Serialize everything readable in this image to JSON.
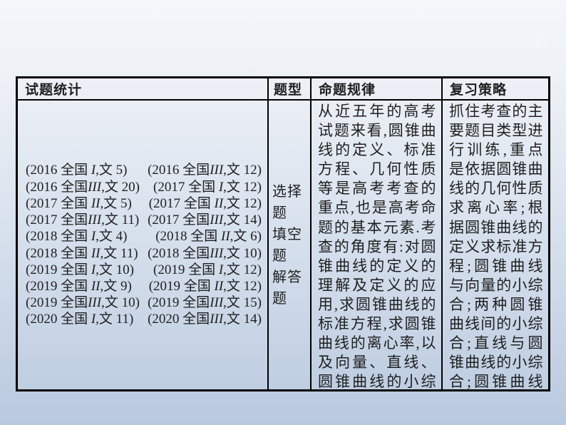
{
  "page": {
    "number": "-2-"
  },
  "table": {
    "headers": {
      "stats": "试题统计",
      "qtype": "题型",
      "law": "命题规律",
      "strategy": "复习策略"
    },
    "stats_rows": [
      {
        "left": "(2016 全国 I,文 5)",
        "right": "(2016 全国III,文 12)"
      },
      {
        "left": "(2016 全国III,文 20)",
        "right": "(2017 全国 I,文 12)"
      },
      {
        "left": "(2017 全国 II,文 5)",
        "right": "(2017 全国 II,文 12)"
      },
      {
        "left": "(2017 全国III,文 11)",
        "right": "(2017 全国III,文 14)"
      },
      {
        "left": "(2018 全国 I,文 4)",
        "right": "(2018 全国 II,文 6)"
      },
      {
        "left": "(2018 全国 II,文 11)",
        "right": "(2018 全国III,文 10)"
      },
      {
        "left": "(2019 全国 I,文 10)",
        "right": "(2019 全国 I,文 12)"
      },
      {
        "left": "(2019 全国 II,文 9)",
        "right": "(2019 全国 II,文 12)"
      },
      {
        "left": "(2019 全国III,文 10)",
        "right": "(2019 全国III,文 15)"
      },
      {
        "left": "(2020 全国 I,文 11)",
        "right": "(2020 全国III,文 14)"
      }
    ],
    "question_types": [
      "选择题",
      "填空题",
      "解答题"
    ],
    "law_text": "从近五年的高考试题来看,圆锥曲线的定义、标准方程、几何性质等是高考考查的重点,也是高考命题的基本元素.考查的角度有:对圆锥曲线的定义的理解及定义的应用,求圆锥曲线的标准方程,求圆锥曲线的离心率,以及向量、直线、圆锥曲线的小综合.",
    "strategy_text": "抓住考查的主要题目类型进行训练,重点是依据圆锥曲线的几何性质求离心率;根据圆锥曲线的定义求标准方程;圆锥曲线与向量的小综合;两种圆锥曲线间的小综合;直线与圆锥曲线的小综合;圆锥曲线的综合应用等."
  },
  "colors": {
    "border": "#000000",
    "text": "#1f1f1f",
    "page_number": "#f7f9fc",
    "bg_top": "#f4f6fa",
    "bg_bottom": "#b9c9df"
  }
}
